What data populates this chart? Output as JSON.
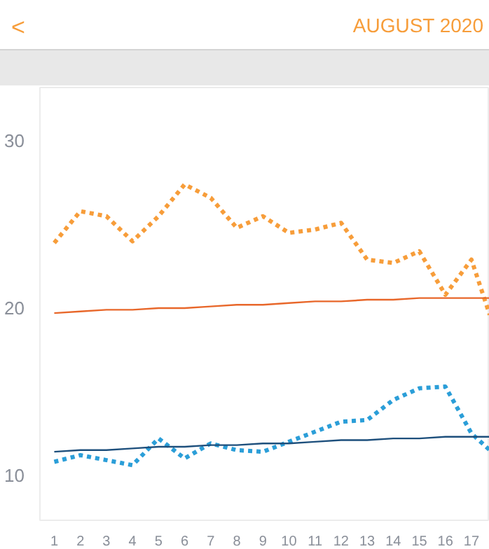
{
  "chart_data": {
    "type": "line",
    "title": "AUGUST 2020",
    "annotations": [
      "<"
    ],
    "x": [
      1,
      2,
      3,
      4,
      5,
      6,
      7,
      8,
      9,
      10,
      11,
      12,
      13,
      14,
      15,
      16,
      17,
      17.7
    ],
    "series": [
      {
        "color": "#f79d3a",
        "line_style": "dotted",
        "values": [
          23.9,
          25.8,
          25.5,
          24.0,
          25.5,
          27.4,
          26.6,
          24.8,
          25.5,
          24.5,
          24.7,
          25.1,
          22.9,
          22.7,
          23.4,
          20.8,
          22.9,
          19.6
        ]
      },
      {
        "color": "#e8672a",
        "line_style": "solid",
        "values": [
          19.7,
          19.8,
          19.9,
          19.9,
          20.0,
          20.0,
          20.1,
          20.2,
          20.2,
          20.3,
          20.4,
          20.4,
          20.5,
          20.5,
          20.6,
          20.6,
          20.6,
          20.6
        ]
      },
      {
        "color": "#2b9ed8",
        "line_style": "dotted",
        "values": [
          10.8,
          11.2,
          10.9,
          10.6,
          12.2,
          11.0,
          11.9,
          11.5,
          11.4,
          12.0,
          12.6,
          13.2,
          13.3,
          14.5,
          15.2,
          15.3,
          12.5,
          11.5
        ]
      },
      {
        "color": "#1d4f7c",
        "line_style": "solid",
        "values": [
          11.4,
          11.5,
          11.5,
          11.6,
          11.7,
          11.7,
          11.8,
          11.8,
          11.9,
          11.9,
          12.0,
          12.1,
          12.1,
          12.2,
          12.2,
          12.3,
          12.3,
          12.3
        ]
      }
    ],
    "xlim": [
      0.45,
      17.7
    ],
    "xticks": [
      1,
      2,
      3,
      4,
      5,
      6,
      7,
      8,
      9,
      10,
      11,
      12,
      13,
      14,
      15,
      16,
      17
    ],
    "ylim": [
      7.3,
      33.2
    ],
    "yticks": [
      10,
      20,
      30
    ],
    "grid": false,
    "marker": "none"
  }
}
